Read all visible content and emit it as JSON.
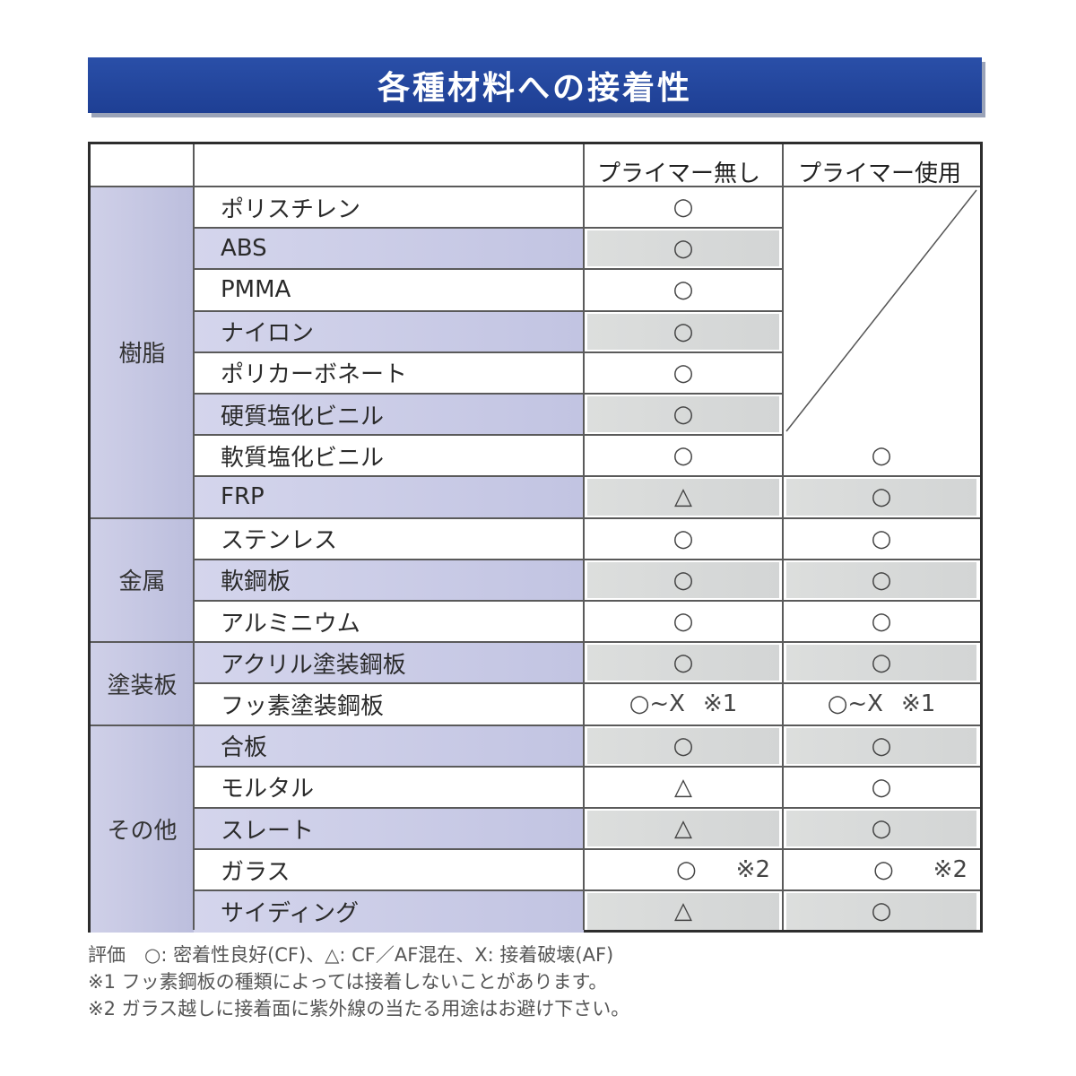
{
  "title": "各種材料への接着性",
  "columns": [
    "プライマー無し",
    "プライマー使用"
  ],
  "groups": [
    {
      "label": "樹脂",
      "rows": [
        {
          "name": "ポリスチレン",
          "a": "○",
          "b": ""
        },
        {
          "name": "ABS",
          "a": "○",
          "b": ""
        },
        {
          "name": "PMMA",
          "a": "○",
          "b": ""
        },
        {
          "name": "ナイロン",
          "a": "○",
          "b": ""
        },
        {
          "name": "ポリカーボネート",
          "a": "○",
          "b": ""
        },
        {
          "name": "硬質塩化ビニル",
          "a": "○",
          "b": ""
        },
        {
          "name": "軟質塩化ビニル",
          "a": "○",
          "b": "○"
        },
        {
          "name": "FRP",
          "a": "△",
          "b": "○"
        }
      ]
    },
    {
      "label": "金属",
      "rows": [
        {
          "name": "ステンレス",
          "a": "○",
          "b": "○"
        },
        {
          "name": "軟鋼板",
          "a": "○",
          "b": "○"
        },
        {
          "name": "アルミニウム",
          "a": "○",
          "b": "○"
        }
      ]
    },
    {
      "label": "塗装板",
      "rows": [
        {
          "name": "アクリル塗装鋼板",
          "a": "○",
          "b": "○"
        },
        {
          "name": "フッ素塗装鋼板",
          "a": "○~X",
          "a_note": "※1",
          "b": "○~X",
          "b_note": "※1"
        }
      ]
    },
    {
      "label": "その他",
      "rows": [
        {
          "name": "合板",
          "a": "○",
          "b": "○"
        },
        {
          "name": "モルタル",
          "a": "△",
          "b": "○"
        },
        {
          "name": "スレート",
          "a": "△",
          "b": "○"
        },
        {
          "name": "ガラス",
          "a": "○",
          "a_note": "※2",
          "b": "○",
          "b_note": "※2"
        },
        {
          "name": "サイディング",
          "a": "△",
          "b": "○"
        }
      ]
    }
  ],
  "legend": [
    "評価　○: 密着性良好(CF)、△: CF／AF混在、X: 接着破壊(AF)",
    "※1 フッ素鋼板の種類によっては接着しないことがあります。",
    "※2 ガラス越しに接着面に紫外線の当たる用途はお避け下さい。"
  ]
}
